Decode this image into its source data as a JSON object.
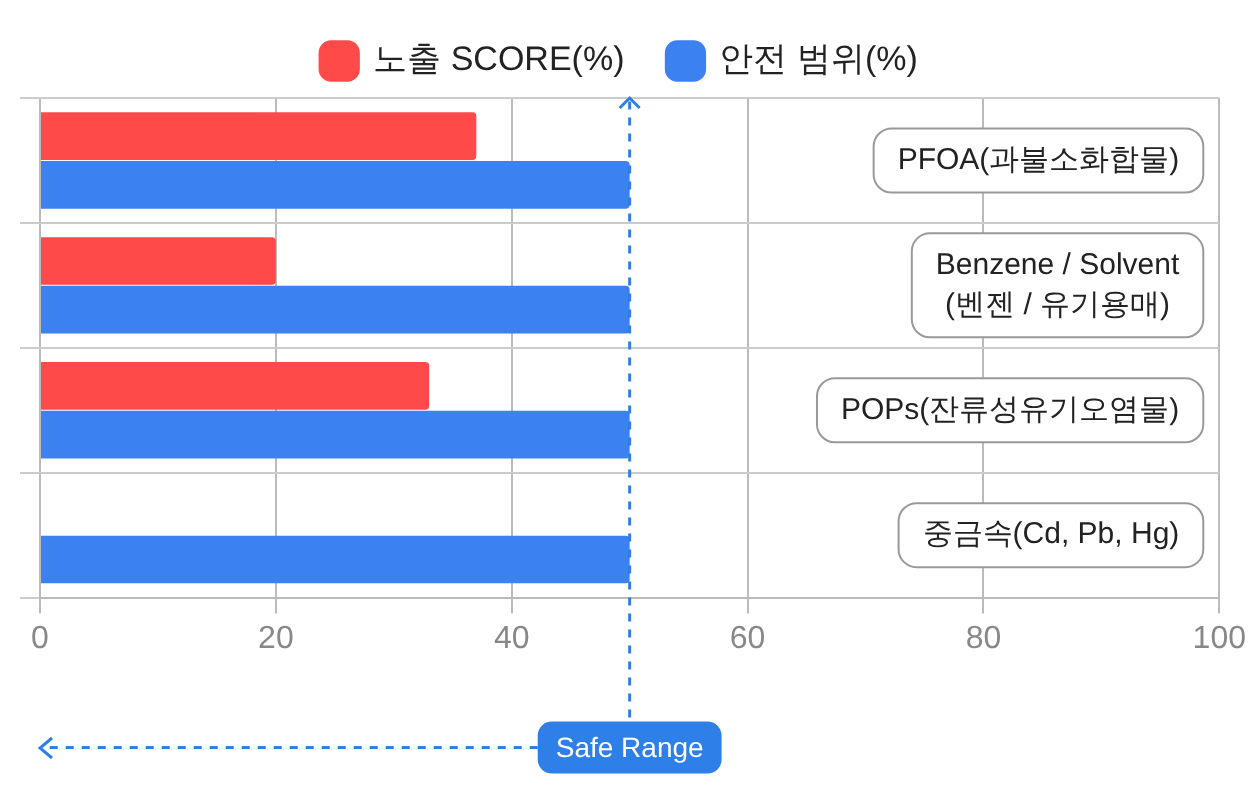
{
  "chart_data": {
    "type": "bar",
    "orientation": "horizontal",
    "categories": [
      "PFOA(과불소화합물)",
      "Benzene / Solvent (벤젠 / 유기용매)",
      "POPs(잔류성유기오염물)",
      "중금속(Cd, Pb, Hg)"
    ],
    "series": [
      {
        "name": "노출 SCORE(%)",
        "color": "#ff4a4a",
        "values": [
          37,
          20,
          33,
          0
        ]
      },
      {
        "name": "안전 범위(%)",
        "color": "#3b82f0",
        "values": [
          50,
          50,
          50,
          50
        ]
      }
    ],
    "xlim": [
      0,
      100
    ],
    "xticks": [
      0,
      20,
      40,
      60,
      80,
      100
    ],
    "grid": "x",
    "legend": "top",
    "ref_lines": [
      {
        "axis": "x",
        "value": 50,
        "label": "Safe Range",
        "color": "#2f7fe8",
        "line_style": "dashed"
      }
    ]
  }
}
